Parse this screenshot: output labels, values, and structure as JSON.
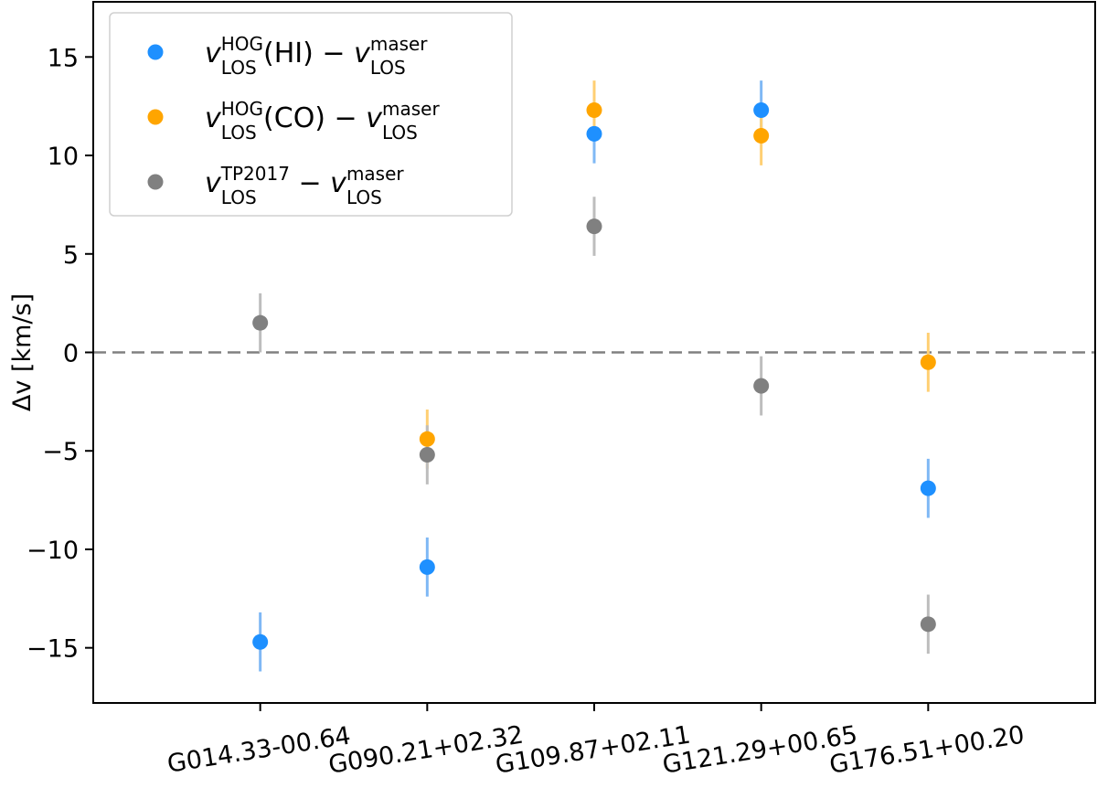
{
  "chart_data": {
    "type": "scatter",
    "title": "",
    "xlabel": "",
    "ylabel": "Δv [km/s]",
    "categories": [
      "G014.33-00.64",
      "G090.21+02.32",
      "G109.87+02.11",
      "G121.29+00.65",
      "G176.51+00.20"
    ],
    "xlim": [
      -1,
      5
    ],
    "ylim": [
      -17.8,
      17.8
    ],
    "yticks": [
      -15,
      -10,
      -5,
      0,
      5,
      10,
      15
    ],
    "ytick_labels": [
      "−15",
      "−10",
      "−5",
      "0",
      "5",
      "10",
      "15"
    ],
    "reference_line": {
      "y": 0,
      "style": "dashed",
      "color": "#808080"
    },
    "grid": false,
    "legend_position": "top-left",
    "series": [
      {
        "name": "v_LOS^HOG(HI) − v_LOS^maser",
        "legend": {
          "base": "v",
          "sup": "HOG",
          "sub": "LOS",
          "mid": "(HI) − ",
          "base2": "v",
          "sup2": "maser",
          "sub2": "LOS"
        },
        "color": "#1e90ff",
        "errcolor": "#7fb8f5",
        "points": [
          {
            "x": "G014.33-00.64",
            "y": -14.7,
            "err": 1.5
          },
          {
            "x": "G090.21+02.32",
            "y": -10.9,
            "err": 1.5
          },
          {
            "x": "G109.87+02.11",
            "y": 11.1,
            "err": 1.5
          },
          {
            "x": "G121.29+00.65",
            "y": 12.3,
            "err": 1.5
          },
          {
            "x": "G176.51+00.20",
            "y": -6.9,
            "err": 1.5
          }
        ]
      },
      {
        "name": "v_LOS^HOG(CO) − v_LOS^maser",
        "legend": {
          "base": "v",
          "sup": "HOG",
          "sub": "LOS",
          "mid": "(CO) − ",
          "base2": "v",
          "sup2": "maser",
          "sub2": "LOS"
        },
        "color": "#ffa500",
        "errcolor": "#ffcf73",
        "points": [
          {
            "x": "G090.21+02.32",
            "y": -4.4,
            "err": 1.5
          },
          {
            "x": "G109.87+02.11",
            "y": 12.3,
            "err": 1.5
          },
          {
            "x": "G121.29+00.65",
            "y": 11.0,
            "err": 1.5
          },
          {
            "x": "G176.51+00.20",
            "y": -0.5,
            "err": 1.5
          }
        ]
      },
      {
        "name": "v_LOS^TP2017 − v_LOS^maser",
        "legend": {
          "base": "v",
          "sup": "TP2017",
          "sub": "LOS",
          "mid": " − ",
          "base2": "v",
          "sup2": "maser",
          "sub2": "LOS"
        },
        "color": "#808080",
        "errcolor": "#bdbdbd",
        "points": [
          {
            "x": "G014.33-00.64",
            "y": 1.5,
            "err": 1.5
          },
          {
            "x": "G090.21+02.32",
            "y": -5.2,
            "err": 1.5
          },
          {
            "x": "G109.87+02.11",
            "y": 6.4,
            "err": 1.5
          },
          {
            "x": "G121.29+00.65",
            "y": -1.7,
            "err": 1.5
          },
          {
            "x": "G176.51+00.20",
            "y": -13.8,
            "err": 1.5
          }
        ]
      }
    ]
  }
}
